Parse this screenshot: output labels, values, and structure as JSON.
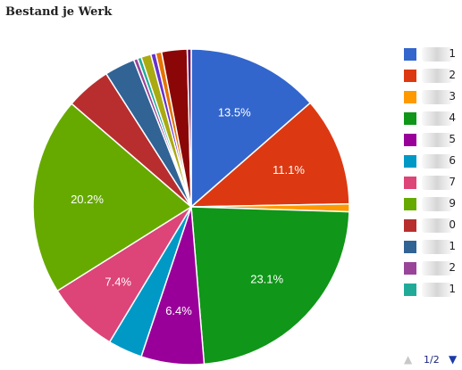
{
  "chart_data": {
    "type": "pie",
    "title": "Bestand je Werk",
    "legend_position": "right",
    "slices": [
      {
        "label": "1",
        "value": 13.5,
        "color": "#3366cc",
        "data_label": "13.5%"
      },
      {
        "label": "2",
        "value": 11.1,
        "color": "#dc3912",
        "data_label": "11.1%"
      },
      {
        "label": "3",
        "value": 0.8,
        "color": "#ff9900",
        "data_label": ""
      },
      {
        "label": "4",
        "value": 23.1,
        "color": "#109618",
        "data_label": "23.1%"
      },
      {
        "label": "5",
        "value": 6.4,
        "color": "#990099",
        "data_label": "6.4%"
      },
      {
        "label": "6",
        "value": 3.5,
        "color": "#0099c6",
        "data_label": ""
      },
      {
        "label": "7",
        "value": 7.4,
        "color": "#dd4477",
        "data_label": "7.4%"
      },
      {
        "label": "9",
        "value": 20.2,
        "color": "#66aa00",
        "data_label": "20.2%"
      },
      {
        "label": "0",
        "value": 4.6,
        "color": "#b82e2e",
        "data_label": ""
      },
      {
        "label": "1",
        "value": 3.1,
        "color": "#316395",
        "data_label": ""
      },
      {
        "label": "2",
        "value": 0.4,
        "color": "#994499",
        "data_label": ""
      },
      {
        "label": "1",
        "value": 0.4,
        "color": "#22aa99",
        "data_label": ""
      },
      {
        "label": "",
        "value": 1.0,
        "color": "#aaaa11",
        "data_label": ""
      },
      {
        "label": "",
        "value": 0.5,
        "color": "#6633cc",
        "data_label": ""
      },
      {
        "label": "",
        "value": 0.6,
        "color": "#e67300",
        "data_label": ""
      },
      {
        "label": "",
        "value": 2.6,
        "color": "#8b0707",
        "data_label": ""
      },
      {
        "label": "",
        "value": 0.4,
        "color": "#651067",
        "data_label": ""
      }
    ],
    "legend_visible_count": 12
  },
  "pager": {
    "prev_icon": "▲",
    "text": "1/2",
    "next_icon": "▼"
  }
}
